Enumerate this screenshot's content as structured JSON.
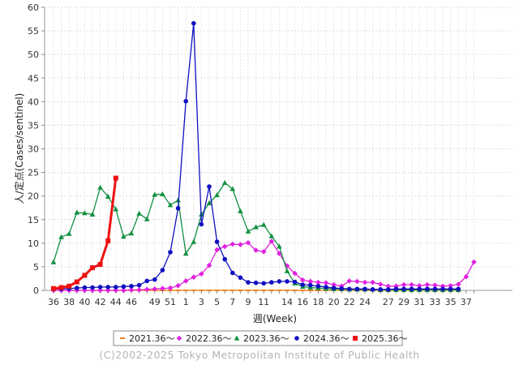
{
  "chart_data": {
    "type": "line",
    "xlabel": "週(Week)",
    "ylabel": "人/定点(Cases/sentinel)",
    "ylim": [
      0,
      60
    ],
    "y_ticks": [
      0,
      5,
      10,
      15,
      20,
      25,
      30,
      35,
      40,
      45,
      50,
      55,
      60
    ],
    "x_tick_labels": [
      "36",
      "38",
      "40",
      "42",
      "44",
      "46",
      "49",
      "51",
      "1",
      "3",
      "5",
      "7",
      "9",
      "11",
      "14",
      "16",
      "18",
      "20",
      "22",
      "24",
      "27",
      "29",
      "31",
      "33",
      "35",
      "37"
    ],
    "grid": true,
    "legend_position": "bottom",
    "series": [
      {
        "name": "2021.36〜",
        "color": "#f08020",
        "marker": "dash",
        "values": [
          0,
          0,
          0,
          0,
          0,
          0,
          0,
          0,
          0,
          0,
          0,
          0,
          0,
          0,
          0,
          0,
          0,
          0,
          0,
          0,
          0,
          0,
          0,
          0,
          0,
          0,
          0,
          0,
          0,
          0,
          0,
          0,
          0,
          0,
          0,
          0,
          0,
          0,
          0,
          0,
          0,
          0,
          0,
          0,
          0,
          0,
          0,
          0,
          0,
          0,
          0,
          0,
          0
        ]
      },
      {
        "name": "2022.36〜",
        "color": "#e020e0",
        "marker": "diamond",
        "values": [
          0,
          0,
          0,
          0,
          0,
          0,
          0,
          0,
          0,
          0,
          0.1,
          0.1,
          0.2,
          0.3,
          0.4,
          0.5,
          1.0,
          2.0,
          2.8,
          3.5,
          5.3,
          8.6,
          9.3,
          9.8,
          9.7,
          10.1,
          8.5,
          8.2,
          10.4,
          7.8,
          5.2,
          3.6,
          2.2,
          1.9,
          1.7,
          1.6,
          1.2,
          0.9,
          2.0,
          1.9,
          1.7,
          1.7,
          1.3,
          0.9,
          0.9,
          1.2,
          1.2,
          1.0,
          1.2,
          1.1,
          0.9,
          1.0,
          1.3,
          2.9,
          6.0
        ]
      },
      {
        "name": "2023.36〜",
        "color": "#109040",
        "marker": "triangle",
        "values": [
          6.0,
          11.3,
          12.0,
          16.5,
          16.4,
          16.1,
          21.8,
          19.9,
          17.2,
          11.4,
          12.1,
          16.3,
          15.1,
          20.3,
          20.4,
          18.1,
          19.1,
          7.8,
          10.3,
          16.1,
          18.5,
          20.2,
          22.8,
          21.5,
          16.8,
          12.5,
          13.4,
          13.9,
          11.5,
          9.3,
          4.1,
          1.5,
          0.8,
          0.6,
          0.5,
          0.4,
          0.3,
          0.3,
          0.2,
          0.2,
          0.2,
          0.2,
          0.1,
          0.1,
          0.1,
          0.1,
          0.1,
          0.1,
          0.1,
          0.1,
          0.1,
          0.1,
          0.1
        ]
      },
      {
        "name": "2024.36〜",
        "color": "#1010c0",
        "marker": "circle",
        "values": [
          0.3,
          0.3,
          0.4,
          0.5,
          0.6,
          0.6,
          0.7,
          0.7,
          0.7,
          0.8,
          0.9,
          1.1,
          2.0,
          2.3,
          4.3,
          8.1,
          17.4,
          40.1,
          56.6,
          14.0,
          22.0,
          10.3,
          6.6,
          3.7,
          2.7,
          1.7,
          1.6,
          1.5,
          1.7,
          1.9,
          1.9,
          1.8,
          1.2,
          1.1,
          0.9,
          0.7,
          0.5,
          0.4,
          0.3,
          0.3,
          0.3,
          0.2,
          0.2,
          0.2,
          0.3,
          0.3,
          0.3,
          0.3,
          0.3,
          0.3,
          0.3,
          0.3,
          0.3
        ]
      },
      {
        "name": "2025.36〜",
        "color": "#ee1111",
        "marker": "square",
        "values": [
          0.4,
          0.6,
          0.9,
          1.8,
          3.2,
          4.8,
          5.5,
          10.5,
          23.8
        ]
      }
    ]
  },
  "copyright": "(C)2002-2025 Tokyo Metropolitan Institute of Public Health"
}
